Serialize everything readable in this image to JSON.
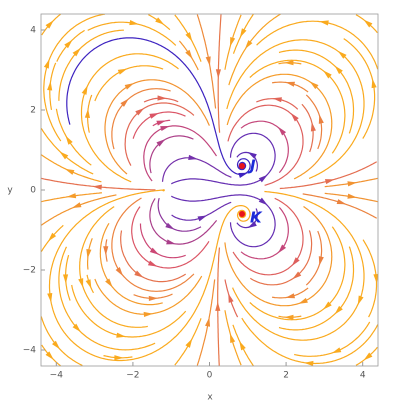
{
  "chart_data": {
    "type": "streamplot",
    "x_label": "x",
    "y_label": "y",
    "xlim": [
      -4.4,
      4.4
    ],
    "ylim": [
      -4.4,
      4.4
    ],
    "xticks": [
      {
        "value": -4,
        "label": "−4"
      },
      {
        "value": -2,
        "label": "−2"
      },
      0,
      2,
      4
    ],
    "yticks": [
      {
        "value": -4,
        "label": "−4"
      },
      {
        "value": -2,
        "label": "−2"
      },
      0,
      2,
      4
    ],
    "points": [
      {
        "label": "J",
        "x": 0.85,
        "y": 0.6,
        "color": "#e8141b"
      },
      {
        "label": "K",
        "x": 0.85,
        "y": -0.6,
        "color": "#e8141b"
      }
    ]
  }
}
